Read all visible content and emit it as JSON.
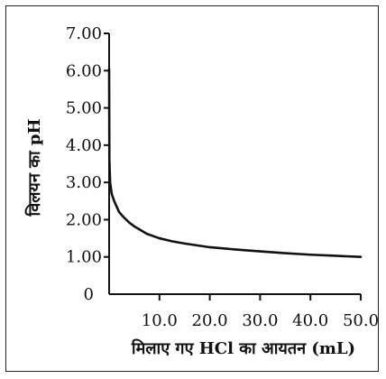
{
  "chart_data": {
    "type": "line",
    "title": "",
    "xlabel": "मिलाए गए HCl का आयतन (mL)",
    "ylabel": "विलयन का pH",
    "xlim": [
      0,
      50
    ],
    "ylim": [
      0,
      7
    ],
    "x_ticks": [
      10,
      20,
      30,
      40,
      50
    ],
    "x_tick_labels": [
      "10.0",
      "20.0",
      "30.0",
      "40.0",
      "50.0"
    ],
    "y_ticks": [
      0,
      1,
      2,
      3,
      4,
      5,
      6,
      7
    ],
    "y_tick_labels": [
      "0",
      "1.00",
      "2.00",
      "3.00",
      "4.00",
      "5.00",
      "6.00",
      "7.00"
    ],
    "grid": false,
    "series": [
      {
        "x": [
          0,
          0.05,
          0.2,
          0.5,
          1,
          2,
          3,
          4,
          5,
          7.5,
          10,
          12.5,
          15,
          20,
          25,
          30,
          35,
          40,
          45,
          50
        ],
        "y": [
          6.05,
          3.6,
          3.0,
          2.7,
          2.5,
          2.2,
          2.05,
          1.92,
          1.82,
          1.62,
          1.5,
          1.42,
          1.36,
          1.26,
          1.2,
          1.15,
          1.1,
          1.06,
          1.03,
          1.0
        ]
      }
    ]
  }
}
